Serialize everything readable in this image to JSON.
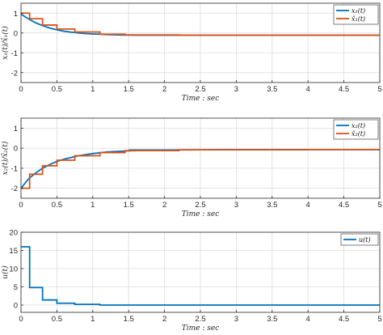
{
  "colors": {
    "blue": "#0072BD",
    "orange": "#D95319"
  },
  "chart_data": [
    {
      "type": "line",
      "xlabel": "Time : sec",
      "ylabel": "x₁(t)/x̂₁(t)",
      "xlim": [
        0,
        5
      ],
      "ylim": [
        -2.5,
        1.5
      ],
      "xticks": [
        0,
        0.5,
        1,
        1.5,
        2,
        2.5,
        3,
        3.5,
        4,
        4.5,
        5
      ],
      "xtick_labels": [
        "0",
        "0.5",
        "1",
        "1.5",
        "2",
        "2.5",
        "3",
        "3.5",
        "4",
        "4.5",
        "5"
      ],
      "yticks": [
        -2,
        -1,
        0,
        1
      ],
      "ytick_labels": [
        "-2",
        "-1",
        "0",
        "1"
      ],
      "grid": true,
      "legend_position": "top-right",
      "series": [
        {
          "name": "x₁(t)",
          "color": "blue",
          "style": "line",
          "x": [
            0,
            0.1,
            0.2,
            0.3,
            0.4,
            0.5,
            0.6,
            0.7,
            0.8,
            0.9,
            1.0,
            1.2,
            1.4,
            1.6,
            2.0,
            3.0,
            4.0,
            5.0
          ],
          "y": [
            0.95,
            0.72,
            0.52,
            0.37,
            0.25,
            0.16,
            0.09,
            0.04,
            0.0,
            -0.03,
            -0.05,
            -0.08,
            -0.1,
            -0.11,
            -0.11,
            -0.11,
            -0.11,
            -0.11
          ]
        },
        {
          "name": "x̂₁(t)",
          "color": "orange",
          "style": "step",
          "x": [
            0,
            0.12,
            0.3,
            0.5,
            0.75,
            1.1,
            1.45,
            2.2,
            4.0,
            5.0
          ],
          "y": [
            1.0,
            0.72,
            0.4,
            0.2,
            0.05,
            -0.06,
            -0.1,
            -0.11,
            -0.11,
            -0.11
          ]
        }
      ]
    },
    {
      "type": "line",
      "xlabel": "Time : sec",
      "ylabel": "x₂(t)/x̂₂(t)",
      "xlim": [
        0,
        5
      ],
      "ylim": [
        -2.5,
        1.5
      ],
      "xticks": [
        0,
        0.5,
        1,
        1.5,
        2,
        2.5,
        3,
        3.5,
        4,
        4.5,
        5
      ],
      "xtick_labels": [
        "0",
        "0.5",
        "1",
        "1.5",
        "2",
        "2.5",
        "3",
        "3.5",
        "4",
        "4.5",
        "5"
      ],
      "yticks": [
        -2,
        -1,
        0,
        1
      ],
      "ytick_labels": [
        "-2",
        "-1",
        "0",
        "1"
      ],
      "grid": true,
      "legend_position": "top-right",
      "series": [
        {
          "name": "x₂(t)",
          "color": "blue",
          "style": "line",
          "x": [
            0,
            0.1,
            0.2,
            0.3,
            0.4,
            0.5,
            0.6,
            0.8,
            1.0,
            1.2,
            1.5,
            2.0,
            2.5,
            3.0,
            4.0,
            5.0
          ],
          "y": [
            -2.0,
            -1.55,
            -1.25,
            -1.0,
            -0.82,
            -0.66,
            -0.55,
            -0.38,
            -0.27,
            -0.19,
            -0.13,
            -0.09,
            -0.08,
            -0.07,
            -0.07,
            -0.07
          ],
          "extra_stub": {
            "x": [
              1.5,
              2.2
            ],
            "y": [
              -0.09,
              -0.09
            ]
          }
        },
        {
          "name": "x̂₂(t)",
          "color": "orange",
          "style": "step",
          "x": [
            0,
            0.12,
            0.3,
            0.5,
            0.75,
            1.1,
            1.45,
            2.2,
            4.0,
            5.0
          ],
          "y": [
            -2.0,
            -1.3,
            -0.88,
            -0.6,
            -0.38,
            -0.22,
            -0.12,
            -0.08,
            -0.07,
            -0.07
          ]
        }
      ]
    },
    {
      "type": "line",
      "xlabel": "Time : sec",
      "ylabel": "u(t)",
      "xlim": [
        0,
        5
      ],
      "ylim": [
        -2,
        20
      ],
      "xticks": [
        0,
        0.5,
        1,
        1.5,
        2,
        2.5,
        3,
        3.5,
        4,
        4.5,
        5
      ],
      "xtick_labels": [
        "0",
        "0.5",
        "1",
        "1.5",
        "2",
        "2.5",
        "3",
        "3.5",
        "4",
        "4.5",
        "5"
      ],
      "yticks": [
        0,
        5,
        10,
        15,
        20
      ],
      "ytick_labels": [
        "0",
        "5",
        "10",
        "15",
        "20"
      ],
      "grid": true,
      "legend_position": "top-right",
      "series": [
        {
          "name": "u(t)",
          "color": "blue",
          "style": "step",
          "x": [
            0,
            0.12,
            0.3,
            0.5,
            0.75,
            1.1,
            5.0
          ],
          "y": [
            16.0,
            4.8,
            1.4,
            0.5,
            0.2,
            0.0,
            0.0
          ]
        }
      ]
    }
  ]
}
